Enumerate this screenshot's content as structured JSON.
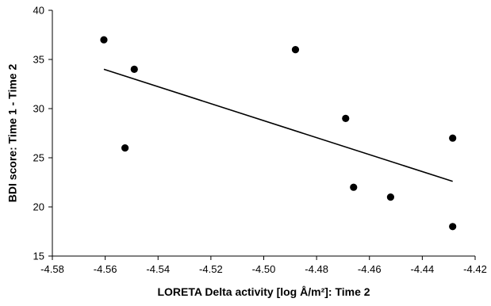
{
  "chart_data": {
    "type": "scatter",
    "xlabel": "LORETA Delta activity [log Å/m²]: Time 2",
    "ylabel": "BDI score: Time 1 - Time 2",
    "xlim": [
      -4.58,
      -4.42
    ],
    "ylim": [
      15,
      40
    ],
    "x_ticks": [
      "-4.58",
      "-4.56",
      "-4.54",
      "-4.52",
      "-4.50",
      "-4.48",
      "-4.46",
      "-4.44",
      "-4.42"
    ],
    "x_tick_values": [
      -4.58,
      -4.56,
      -4.54,
      -4.52,
      -4.5,
      -4.48,
      -4.46,
      -4.44,
      -4.42
    ],
    "y_ticks": [
      "15",
      "20",
      "25",
      "30",
      "35",
      "40"
    ],
    "y_tick_values": [
      15,
      20,
      25,
      30,
      35,
      40
    ],
    "grid": false,
    "series": [
      {
        "points": [
          {
            "x": -4.5605,
            "y": 37
          },
          {
            "x": -4.549,
            "y": 34
          },
          {
            "x": -4.5525,
            "y": 26
          },
          {
            "x": -4.488,
            "y": 36
          },
          {
            "x": -4.469,
            "y": 29
          },
          {
            "x": -4.466,
            "y": 22
          },
          {
            "x": -4.452,
            "y": 21
          },
          {
            "x": -4.4285,
            "y": 27
          },
          {
            "x": -4.4285,
            "y": 18
          }
        ]
      }
    ],
    "trendline": {
      "x": [
        -4.5605,
        -4.4285
      ],
      "y": [
        34.0,
        22.6
      ]
    },
    "colors": {
      "marker": "#000000",
      "line": "#000000",
      "axis": "#000000"
    }
  }
}
